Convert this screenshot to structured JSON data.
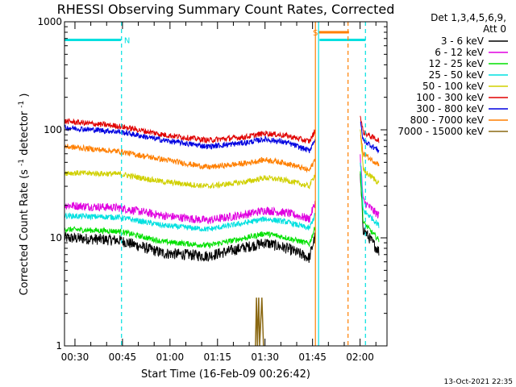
{
  "chart_data": {
    "type": "line",
    "title": "RHESSI Observing Summary Count Rates, Corrected",
    "xlabel": "Start Time (16-Feb-09 00:26:42)",
    "ylabel": "Corrected Count Rate (s",
    "ylabel_sup1": "-1",
    "ylabel_mid": " detector",
    "ylabel_sup2": "-1",
    "ylabel_end": ")",
    "yscale": "log",
    "ylim": [
      1,
      1000
    ],
    "xlim_minutes": [
      26.7,
      128.5
    ],
    "xticks": [
      {
        "t": 30,
        "label": "00:30"
      },
      {
        "t": 45,
        "label": "00:45"
      },
      {
        "t": 60,
        "label": "01:00"
      },
      {
        "t": 75,
        "label": "01:15"
      },
      {
        "t": 90,
        "label": "01:30"
      },
      {
        "t": 105,
        "label": "01:45"
      },
      {
        "t": 120,
        "label": "02:00"
      }
    ],
    "yticks": [
      {
        "v": 1,
        "label": "1"
      },
      {
        "v": 10,
        "label": "10"
      },
      {
        "v": 100,
        "label": "100"
      },
      {
        "v": 1000,
        "label": "1000"
      }
    ],
    "legend_header": [
      "Det 1,3,4,5,6,9,",
      "Att 0"
    ],
    "legend_position": "right",
    "series": [
      {
        "name": "3 - 6 keV",
        "color": "#000000",
        "values": [
          [
            26.7,
            10
          ],
          [
            44,
            9.5
          ],
          [
            58,
            7.2
          ],
          [
            72,
            6.8
          ],
          [
            84,
            8.2
          ],
          [
            90,
            9.0
          ],
          [
            97,
            8.0
          ],
          [
            104,
            6.5
          ],
          [
            106,
            11
          ],
          [
            106.8,
            null
          ],
          [
            119.6,
            null
          ],
          [
            120,
            40
          ],
          [
            121,
            12
          ],
          [
            124,
            9
          ],
          [
            126,
            7.5
          ]
        ]
      },
      {
        "name": "6 - 12 keV",
        "color": "#e000e0",
        "values": [
          [
            26.7,
            20
          ],
          [
            44,
            19
          ],
          [
            58,
            16
          ],
          [
            72,
            14.5
          ],
          [
            84,
            16.5
          ],
          [
            90,
            18
          ],
          [
            97,
            17
          ],
          [
            104,
            15
          ],
          [
            106,
            22
          ],
          [
            106.8,
            null
          ],
          [
            119.6,
            null
          ],
          [
            120,
            60
          ],
          [
            121,
            22
          ],
          [
            124,
            18
          ],
          [
            126,
            16
          ]
        ]
      },
      {
        "name": "12 - 25 keV",
        "color": "#00e000",
        "values": [
          [
            26.7,
            12
          ],
          [
            44,
            11.5
          ],
          [
            58,
            9.2
          ],
          [
            72,
            8.5
          ],
          [
            84,
            10
          ],
          [
            90,
            11
          ],
          [
            97,
            10
          ],
          [
            104,
            8.8
          ],
          [
            106,
            13
          ],
          [
            106.8,
            null
          ],
          [
            119.6,
            null
          ],
          [
            120,
            45
          ],
          [
            121,
            14
          ],
          [
            124,
            11
          ],
          [
            126,
            9.5
          ]
        ]
      },
      {
        "name": "25 - 50 keV",
        "color": "#00e0e0",
        "values": [
          [
            26.7,
            16
          ],
          [
            44,
            15.5
          ],
          [
            58,
            13
          ],
          [
            72,
            12
          ],
          [
            84,
            13.8
          ],
          [
            90,
            15
          ],
          [
            97,
            14
          ],
          [
            104,
            12.2
          ],
          [
            106,
            17
          ],
          [
            106.8,
            null
          ],
          [
            119.6,
            null
          ],
          [
            120,
            55
          ],
          [
            121,
            18
          ],
          [
            124,
            15
          ],
          [
            126,
            13
          ]
        ]
      },
      {
        "name": "50 - 100 keV",
        "color": "#d0d000",
        "values": [
          [
            26.7,
            40
          ],
          [
            44,
            39
          ],
          [
            58,
            33
          ],
          [
            72,
            30
          ],
          [
            84,
            33
          ],
          [
            90,
            36
          ],
          [
            97,
            34
          ],
          [
            104,
            30
          ],
          [
            106,
            40
          ],
          [
            106.8,
            null
          ],
          [
            119.6,
            null
          ],
          [
            120,
            110
          ],
          [
            121,
            42
          ],
          [
            124,
            36
          ],
          [
            126,
            32
          ]
        ]
      },
      {
        "name": "100 - 300 keV",
        "color": "#e00000",
        "values": [
          [
            26.7,
            120
          ],
          [
            44,
            108
          ],
          [
            58,
            90
          ],
          [
            72,
            80
          ],
          [
            84,
            86
          ],
          [
            90,
            93
          ],
          [
            97,
            88
          ],
          [
            104,
            78
          ],
          [
            106,
            100
          ],
          [
            106.8,
            null
          ],
          [
            119.6,
            null
          ],
          [
            120,
            140
          ],
          [
            121,
            95
          ],
          [
            124,
            85
          ],
          [
            126,
            80
          ]
        ]
      },
      {
        "name": "300 - 800 keV",
        "color": "#0000e0",
        "values": [
          [
            26.7,
            105
          ],
          [
            44,
            96
          ],
          [
            58,
            80
          ],
          [
            72,
            70
          ],
          [
            84,
            76
          ],
          [
            90,
            82
          ],
          [
            97,
            76
          ],
          [
            104,
            64
          ],
          [
            106,
            85
          ],
          [
            106.8,
            null
          ],
          [
            119.6,
            null
          ],
          [
            120,
            120
          ],
          [
            121,
            80
          ],
          [
            124,
            70
          ],
          [
            126,
            64
          ]
        ]
      },
      {
        "name": "800 - 7000 keV",
        "color": "#ff7f00",
        "values": [
          [
            26.7,
            70
          ],
          [
            44,
            63
          ],
          [
            58,
            53
          ],
          [
            72,
            45
          ],
          [
            84,
            49
          ],
          [
            90,
            53
          ],
          [
            97,
            49
          ],
          [
            104,
            42
          ],
          [
            106,
            55
          ],
          [
            106.8,
            null
          ],
          [
            119.6,
            null
          ],
          [
            120,
            95
          ],
          [
            121,
            60
          ],
          [
            124,
            52
          ],
          [
            126,
            48
          ]
        ]
      },
      {
        "name": "7000 - 15000 keV",
        "color": "#8b6914",
        "values": [
          [
            87,
            1
          ],
          [
            87.3,
            2.8
          ],
          [
            87.6,
            1
          ],
          [
            88,
            2.8
          ],
          [
            88.3,
            1
          ],
          [
            89,
            2.8
          ],
          [
            89.5,
            1
          ]
        ]
      }
    ],
    "annotations": [
      {
        "type": "segment",
        "color": "#00e0e0",
        "t0": 26.7,
        "t1": 44.5,
        "v": 680
      },
      {
        "type": "label",
        "color": "#00e0e0",
        "t": 45.5,
        "v": 680,
        "text": "N"
      },
      {
        "type": "segment",
        "color": "#00e0e0",
        "t0": 107.2,
        "t1": 121.7,
        "v": 680
      },
      {
        "type": "label",
        "color": "#ff7f00",
        "t": 105.1,
        "v": 800,
        "text": "S"
      },
      {
        "type": "segment",
        "color": "#ff7f00",
        "t0": 106.8,
        "t1": 116.5,
        "v": 800
      },
      {
        "type": "vline",
        "color": "#00e0e0",
        "t": 44.7,
        "style": "dashed"
      },
      {
        "type": "vline",
        "color": "#00e0e0",
        "t": 121.7,
        "style": "dashed"
      },
      {
        "type": "vline",
        "color": "#ff7f00",
        "t": 116.2,
        "style": "dashed"
      },
      {
        "type": "vline",
        "color": "#ff7f00",
        "t": 105.9,
        "style": "solid"
      },
      {
        "type": "vline",
        "color": "#00e0e0",
        "t": 106.9,
        "style": "solid"
      }
    ],
    "footer": "13-Oct-2021 22:35"
  }
}
